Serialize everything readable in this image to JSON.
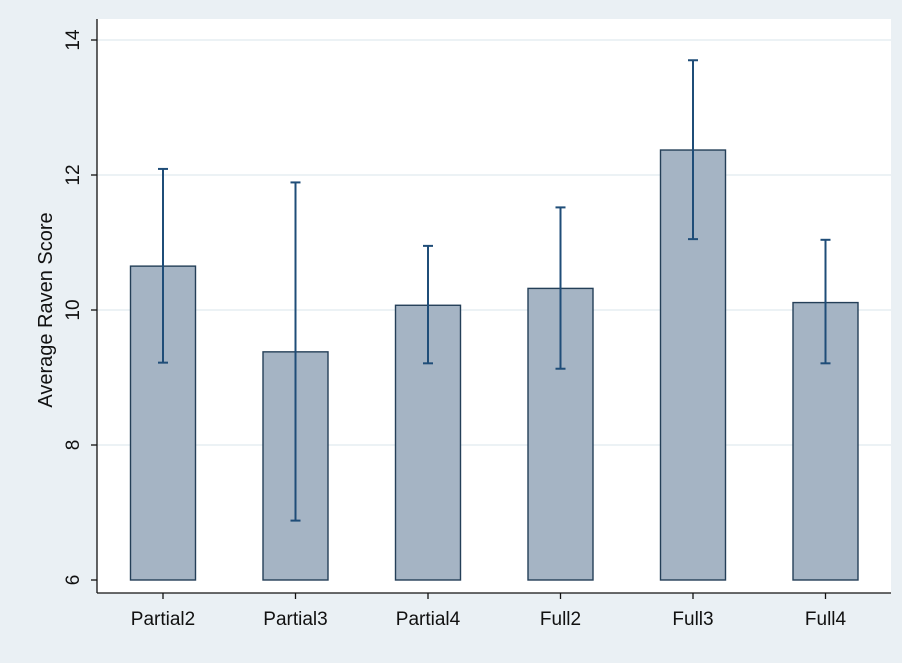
{
  "chart_data": {
    "type": "bar",
    "title": "",
    "xlabel": "",
    "ylabel": "Average Raven Score",
    "categories": [
      "Partial2",
      "Partial3",
      "Partial4",
      "Full2",
      "Full3",
      "Full4"
    ],
    "values": [
      10.65,
      9.38,
      10.07,
      10.32,
      12.37,
      10.11
    ],
    "error_low": [
      9.22,
      6.88,
      9.21,
      9.13,
      11.05,
      9.21
    ],
    "error_high": [
      12.09,
      11.89,
      10.95,
      11.52,
      13.7,
      11.04
    ],
    "ylim": [
      6,
      14
    ],
    "yticks": [
      6,
      8,
      10,
      12,
      14
    ],
    "grid": true,
    "colors": {
      "background": "#eaf0f4",
      "plot_area": "#ffffff",
      "bar_fill": "#a5b4c4",
      "bar_edge": "#243f58",
      "error_bar": "#1f4d78",
      "grid": "#e6eef2",
      "axis": "#111111"
    }
  }
}
